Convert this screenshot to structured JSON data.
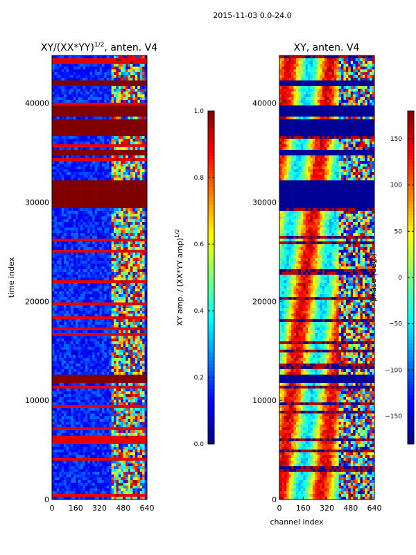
{
  "figure": {
    "suptitle": "2015-11-03 0.0-24.0"
  },
  "chart_data": [
    {
      "type": "heatmap",
      "title_main": "XY/(XX*YY)",
      "title_exp": "1/2",
      "title_suffix": ", anten. V4",
      "xlabel": "",
      "ylabel": "time index",
      "xlim": [
        0,
        640
      ],
      "ylim": [
        0,
        44800
      ],
      "xticks": [
        0,
        160,
        320,
        480,
        640
      ],
      "yticks": [
        0,
        10000,
        20000,
        30000,
        40000
      ],
      "colorbar": {
        "label_main": "XY amp. / (XX*YY amp)",
        "label_exp": "1/2",
        "range": [
          0.0,
          1.0
        ],
        "ticks": [
          "0.0",
          "0.2",
          "0.4",
          "0.6",
          "0.8",
          "1.0"
        ],
        "colormap": "jet"
      },
      "saturated_bands": [
        [
          29300,
          32200
        ],
        [
          34800,
          35400
        ],
        [
          36800,
          38400
        ],
        [
          38700,
          39800
        ],
        [
          41800,
          42400
        ],
        [
          11900,
          12500
        ]
      ],
      "bright_band": [
        4350,
        4550
      ],
      "active_channel_range": [
        400,
        620
      ]
    },
    {
      "type": "heatmap",
      "title_main": "XY, anten. V4",
      "title_exp": "",
      "title_suffix": "",
      "xlabel": "channel index",
      "ylabel": "",
      "xlim": [
        0,
        640
      ],
      "ylim": [
        0,
        44800
      ],
      "xticks": [
        0,
        160,
        320,
        480,
        640
      ],
      "yticks": [
        0,
        10000,
        20000,
        30000,
        40000
      ],
      "colorbar": {
        "label_main": "phase (deg.)",
        "label_exp": "",
        "range": [
          -180,
          180
        ],
        "ticks": [
          "−150",
          "−100",
          "−50",
          "0",
          "50",
          "100",
          "150"
        ],
        "tick_values": [
          -150,
          -100,
          -50,
          0,
          50,
          100,
          150
        ],
        "colormap": "jet"
      },
      "saturated_bands": [
        [
          29300,
          32200
        ],
        [
          34800,
          35400
        ],
        [
          36800,
          38400
        ],
        [
          38700,
          39800
        ],
        [
          41800,
          42400
        ],
        [
          11900,
          12500
        ]
      ],
      "noisy_channel_range": [
        400,
        640
      ]
    }
  ]
}
